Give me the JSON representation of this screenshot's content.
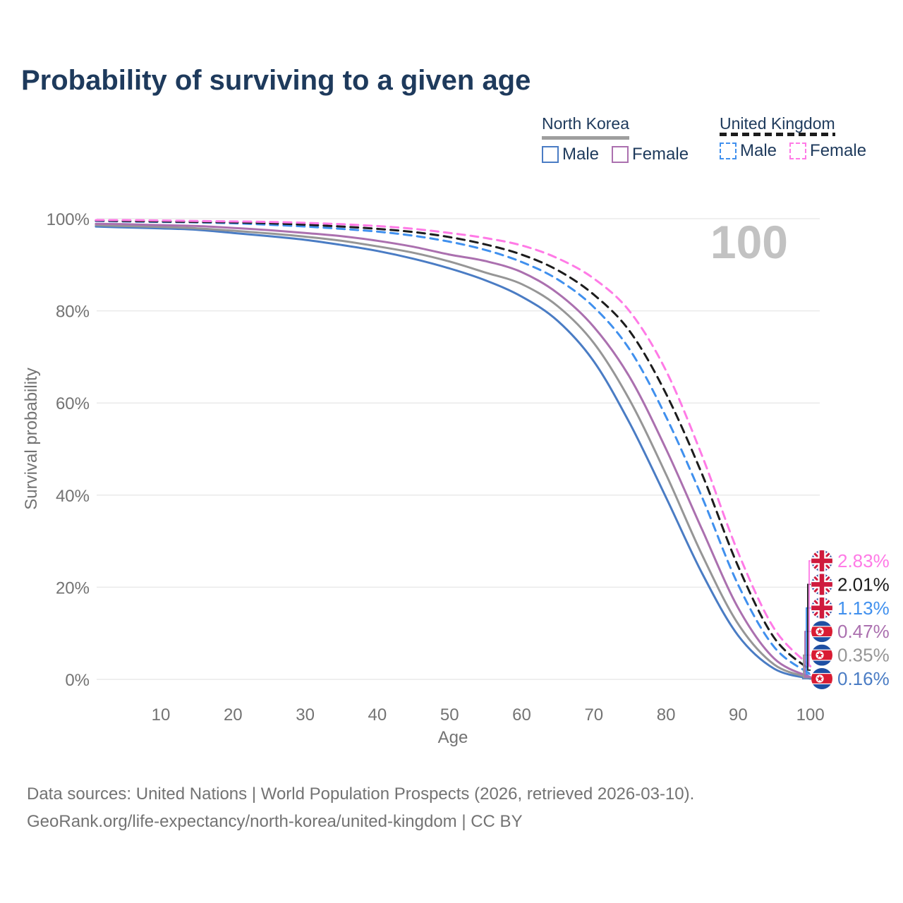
{
  "title": "Probability of surviving to a given age",
  "watermark": "100",
  "legend": {
    "groups": [
      {
        "label": "North Korea",
        "line_style": "solid",
        "underline_color": "#9e9e9e",
        "items": [
          {
            "label": "Male",
            "color": "#4a7cc4"
          },
          {
            "label": "Female",
            "color": "#ab70af"
          }
        ]
      },
      {
        "label": "United Kingdom",
        "line_style": "dashed",
        "underline_color": "#1c1c1c",
        "items": [
          {
            "label": "Male",
            "color": "#4090ee"
          },
          {
            "label": "Female",
            "color": "#ff7ae6"
          }
        ]
      }
    ]
  },
  "chart_data": {
    "type": "line",
    "title": "Probability of surviving to a given age",
    "xlabel": "Age",
    "ylabel": "Survival probability",
    "xlim": [
      1,
      100
    ],
    "ylim": [
      0,
      100
    ],
    "grid": true,
    "legend_position": "top-right",
    "x_ticks": [
      10,
      20,
      30,
      40,
      50,
      60,
      70,
      80,
      90,
      100
    ],
    "y_ticks": [
      {
        "value": 0,
        "label": "0%"
      },
      {
        "value": 20,
        "label": "20%"
      },
      {
        "value": 40,
        "label": "40%"
      },
      {
        "value": 60,
        "label": "60%"
      },
      {
        "value": 80,
        "label": "80%"
      },
      {
        "value": 100,
        "label": "100%"
      }
    ],
    "x": [
      1,
      5,
      10,
      15,
      20,
      25,
      30,
      35,
      40,
      45,
      50,
      55,
      60,
      65,
      70,
      75,
      80,
      85,
      90,
      95,
      100
    ],
    "series": [
      {
        "name": "North Korea Male",
        "country": "North Korea",
        "sex": "male",
        "color": "#4a7cc4",
        "dashed": false,
        "flag": "nk",
        "end_label": "0.16%",
        "end_value": 0.16,
        "values": [
          98.3,
          98.1,
          97.9,
          97.6,
          96.9,
          96.2,
          95.4,
          94.3,
          93.0,
          91.3,
          89.2,
          86.6,
          83.1,
          77.8,
          69.0,
          55.5,
          39.5,
          23.0,
          9.5,
          2.3,
          0.16
        ]
      },
      {
        "name": "North Korea Total",
        "country": "North Korea",
        "sex": "both",
        "color": "#969696",
        "dashed": false,
        "flag": "nk",
        "end_label": "0.35%",
        "end_value": 0.35,
        "values": [
          98.6,
          98.4,
          98.2,
          97.9,
          97.4,
          96.8,
          96.1,
          95.2,
          94.0,
          92.6,
          90.7,
          88.3,
          85.8,
          81.0,
          73.0,
          60.5,
          44.5,
          27.0,
          12.0,
          3.2,
          0.35
        ]
      },
      {
        "name": "North Korea Female",
        "country": "North Korea",
        "sex": "female",
        "color": "#ab70af",
        "dashed": false,
        "flag": "nk",
        "end_label": "0.47%",
        "end_value": 0.47,
        "values": [
          98.9,
          98.8,
          98.6,
          98.4,
          98.0,
          97.5,
          96.9,
          96.2,
          95.2,
          93.9,
          92.2,
          90.8,
          88.4,
          83.8,
          76.5,
          65.5,
          50.0,
          32.5,
          15.5,
          4.5,
          0.47
        ]
      },
      {
        "name": "United Kingdom Male",
        "country": "United Kingdom",
        "sex": "male",
        "color": "#4090ee",
        "dashed": true,
        "flag": "uk",
        "end_label": "1.13%",
        "end_value": 1.13,
        "values": [
          99.5,
          99.4,
          99.3,
          99.2,
          99.0,
          98.7,
          98.3,
          97.8,
          97.2,
          96.3,
          95.0,
          93.2,
          90.6,
          86.8,
          80.8,
          71.5,
          57.0,
          39.5,
          20.5,
          7.0,
          1.13
        ]
      },
      {
        "name": "United Kingdom Total",
        "country": "United Kingdom",
        "sex": "both",
        "color": "#1c1c1c",
        "dashed": true,
        "flag": "uk",
        "end_label": "2.01%",
        "end_value": 2.01,
        "values": [
          99.6,
          99.5,
          99.4,
          99.3,
          99.2,
          99.0,
          98.7,
          98.3,
          97.8,
          97.1,
          96.0,
          94.4,
          92.2,
          88.8,
          83.5,
          75.5,
          62.0,
          44.5,
          24.5,
          9.0,
          2.01
        ]
      },
      {
        "name": "United Kingdom Female",
        "country": "United Kingdom",
        "sex": "female",
        "color": "#ff7ae6",
        "dashed": true,
        "flag": "uk",
        "end_label": "2.83%",
        "end_value": 2.83,
        "values": [
          99.7,
          99.7,
          99.6,
          99.5,
          99.4,
          99.3,
          99.1,
          98.8,
          98.4,
          97.8,
          96.9,
          95.8,
          94.2,
          91.4,
          87.0,
          79.8,
          67.0,
          48.5,
          27.5,
          11.0,
          2.83
        ]
      }
    ]
  },
  "footer": {
    "line1": "Data sources: United Nations | World Population Prospects (2026, retrieved 2026-03-10).",
    "line2": "GeoRank.org/life-expectancy/north-korea/united-kingdom | CC BY"
  }
}
